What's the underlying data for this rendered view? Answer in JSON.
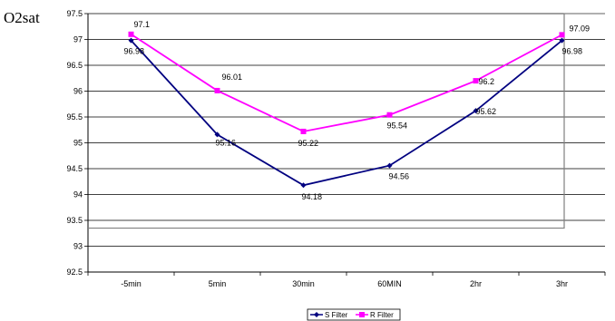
{
  "chart_data": {
    "type": "line",
    "title": "",
    "ylabel": "O2sat",
    "xlabel": "",
    "categories": [
      "-5min",
      "5min",
      "30min",
      "60MIN",
      "2hr",
      "3hr"
    ],
    "ylim": [
      92.5,
      97.5
    ],
    "yticks": [
      "92.5",
      "93",
      "93.5",
      "94",
      "94.5",
      "95",
      "95.5",
      "96",
      "96.5",
      "97",
      "97.5"
    ],
    "grid": "horizontal",
    "legend_position": "bottom",
    "series": [
      {
        "name": "S Filter",
        "color": "#000080",
        "marker": "diamond",
        "values": [
          96.98,
          95.16,
          94.18,
          94.56,
          95.62,
          96.98
        ],
        "labels": [
          "96.98",
          "95.16",
          "94.18",
          "94.56",
          "95.62",
          "96.98"
        ]
      },
      {
        "name": "R Filter",
        "color": "#ff00ff",
        "marker": "square",
        "values": [
          97.1,
          96.01,
          95.22,
          95.54,
          96.2,
          97.09
        ],
        "labels": [
          "97.1",
          "96.01",
          "95.22",
          "95.54",
          "96.2",
          "97.09"
        ]
      }
    ]
  }
}
